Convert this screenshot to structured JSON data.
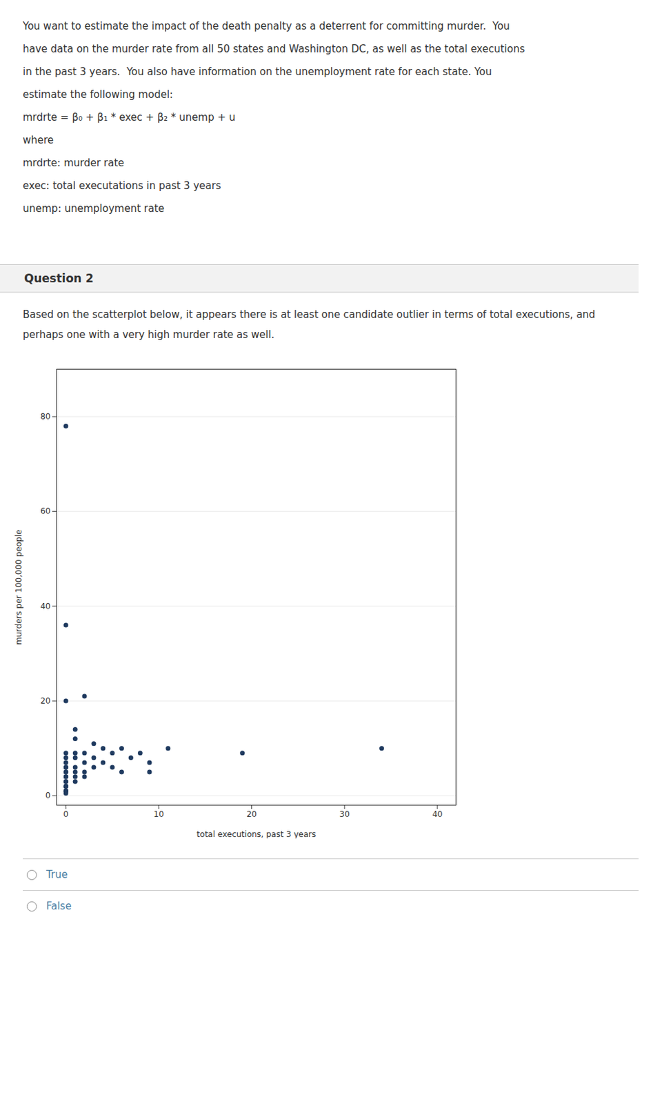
{
  "chart_data": {
    "type": "scatter",
    "title": "Question 2",
    "subtitle": "Based on the scatterplot below, it appears there is at least one candidate outlier in terms of total executions, and perhaps one with a very high murder rate as well.",
    "annotations": [
      "You want to estimate the impact of the death penalty as a deterrent for committing murder.  You",
      "have data on the murder rate from all 50 states and Washington DC, as well as the total executions",
      "in the past 3 years.  You also have information on the unemployment rate for each state. You",
      "estimate the following model:",
      "mrdrte = β₀ + β₁ * exec + β₂ * unemp + u",
      "where",
      "mrdrte: murder rate",
      "exec: total executations in past 3 years",
      "unemp: unemployment rate",
      "True",
      "False"
    ],
    "x": [
      0,
      0,
      0,
      0,
      0,
      0,
      0,
      0,
      0,
      0,
      0,
      0,
      0,
      0,
      0,
      0,
      0,
      0,
      0,
      0,
      0,
      0,
      1,
      1,
      1,
      1,
      1,
      1,
      1,
      1,
      2,
      2,
      2,
      2,
      2,
      3,
      3,
      3,
      4,
      4,
      5,
      5,
      6,
      6,
      7,
      8,
      9,
      9,
      11,
      19,
      34
    ],
    "values": [
      78,
      36,
      20,
      9,
      8,
      7,
      6,
      6,
      5,
      5,
      4,
      4,
      3,
      3,
      2,
      2,
      2,
      1,
      1,
      1,
      1,
      0.5,
      14,
      12,
      9,
      8,
      6,
      5,
      4,
      3,
      21,
      9,
      7,
      5,
      4,
      11,
      8,
      6,
      10,
      7,
      9,
      6,
      10,
      5,
      8,
      9,
      7,
      5,
      10,
      9,
      10
    ],
    "xlabel": "total executions, past 3 years",
    "ylabel": "murders per 100,000 people",
    "xlim": [
      -1,
      42
    ],
    "ylim": [
      -2,
      90
    ],
    "xticks": [
      0,
      10,
      20,
      30,
      40
    ],
    "yticks": [
      0,
      20,
      40,
      60,
      80
    ],
    "color": "#1f3a5f",
    "grid": "y"
  }
}
